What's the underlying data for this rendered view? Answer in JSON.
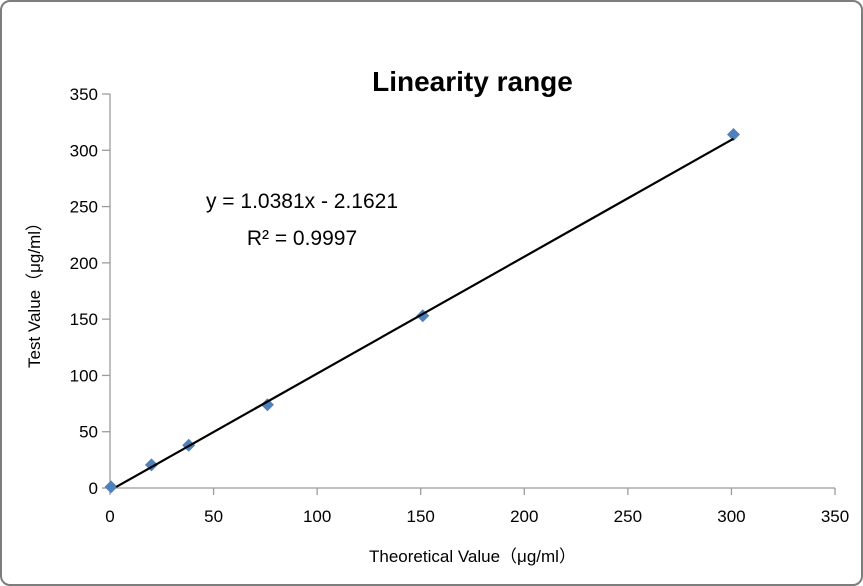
{
  "chart_data": {
    "type": "scatter",
    "title": "Linearity range",
    "xlabel": "Theoretical Value（μg/ml）",
    "ylabel": "Test  Value（μg/ml）",
    "xlim": [
      0,
      350
    ],
    "ylim": [
      0,
      350
    ],
    "xticks": [
      0,
      50,
      100,
      150,
      200,
      250,
      300,
      350
    ],
    "yticks": [
      0,
      50,
      100,
      150,
      200,
      250,
      300,
      350
    ],
    "grid": false,
    "legend": "none",
    "points": [
      {
        "x": 0.5,
        "y": 1
      },
      {
        "x": 20,
        "y": 20.5
      },
      {
        "x": 38,
        "y": 38
      },
      {
        "x": 76,
        "y": 74
      },
      {
        "x": 151,
        "y": 153
      },
      {
        "x": 301,
        "y": 314
      }
    ],
    "trendline": {
      "type": "linear",
      "slope": 1.0381,
      "intercept": -2.1621,
      "r_squared": 0.9997,
      "x_start": 3,
      "x_end": 301
    },
    "annotation": {
      "line1": "y = 1.0381x - 2.1621",
      "line2": "R² = 0.9997"
    },
    "colors": {
      "marker": "#4F81BD",
      "trendline": "#000000",
      "axis": "#9b9b9b",
      "text": "#000000"
    }
  }
}
